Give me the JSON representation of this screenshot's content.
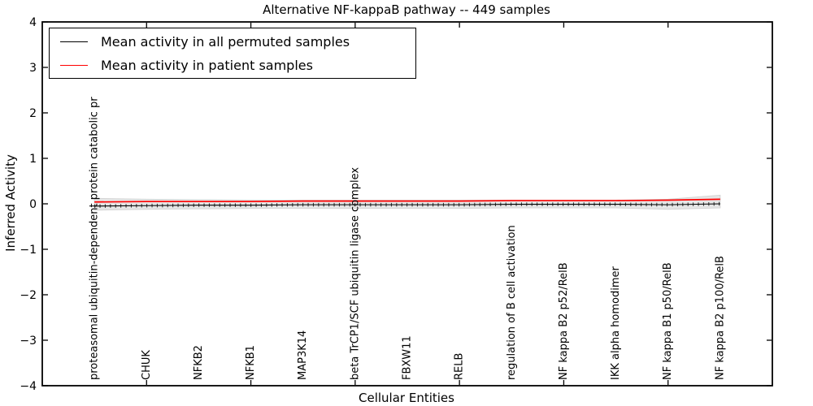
{
  "title": "Alternative NF-kappaB pathway -- 449 samples",
  "legend": {
    "items": [
      {
        "label": "Mean activity in all permuted samples",
        "color": "#000000"
      },
      {
        "label": "Mean activity in patient samples",
        "color": "#ff0000"
      }
    ]
  },
  "chart_data": {
    "type": "line",
    "title": "Alternative NF-kappaB pathway -- 449 samples",
    "xlabel": "Cellular Entities",
    "ylabel": "Inferred Activity",
    "ylim": [
      -4,
      4
    ],
    "xlim": [
      0,
      14
    ],
    "yticks": [
      4,
      3,
      2,
      1,
      0,
      -1,
      -2,
      -3,
      -4
    ],
    "ytick_labels": [
      "4",
      "3",
      "2",
      "1",
      "0",
      "−1",
      "−2",
      "−3",
      "−4"
    ],
    "xticks": [
      2,
      4,
      6,
      8,
      10,
      12
    ],
    "grid": false,
    "legend_position": "upper left",
    "categories": [
      "proteasomal ubiquitin-dependent protein catabolic pr",
      "CHUK",
      "NFKB2",
      "NFKB1",
      "MAP3K14",
      "beta TrCP1/SCF ubiquitin ligase complex",
      "FBXW11",
      "RELB",
      "regulation of B cell activation",
      "NF kappa B2 p52/RelB",
      "IKK alpha homodimer",
      "NF kappa B1 p50/RelB",
      "NF kappa B2 p100/RelB"
    ],
    "x": [
      1,
      2,
      3,
      4,
      5,
      6,
      7,
      8,
      9,
      10,
      11,
      12,
      13
    ],
    "series": [
      {
        "name": "Mean activity in all permuted samples",
        "color": "#000000",
        "values": [
          -0.05,
          -0.04,
          -0.03,
          -0.03,
          -0.02,
          -0.02,
          -0.02,
          -0.02,
          -0.01,
          -0.01,
          -0.01,
          -0.02,
          0.0
        ]
      },
      {
        "name": "Mean activity in patient samples",
        "color": "#ff0000",
        "values": [
          0.04,
          0.05,
          0.05,
          0.05,
          0.06,
          0.06,
          0.06,
          0.06,
          0.07,
          0.07,
          0.07,
          0.08,
          0.1
        ]
      }
    ],
    "band": {
      "name": "permuted activity spread",
      "color": "#e6e6e6",
      "edge_color": "#d4d4d4",
      "upper": [
        0.12,
        0.1,
        0.09,
        0.08,
        0.08,
        0.08,
        0.08,
        0.08,
        0.08,
        0.08,
        0.08,
        0.1,
        0.19
      ],
      "lower": [
        -0.14,
        -0.12,
        -0.11,
        -0.1,
        -0.1,
        -0.1,
        -0.1,
        -0.1,
        -0.09,
        -0.09,
        -0.09,
        -0.12,
        -0.09
      ]
    }
  }
}
